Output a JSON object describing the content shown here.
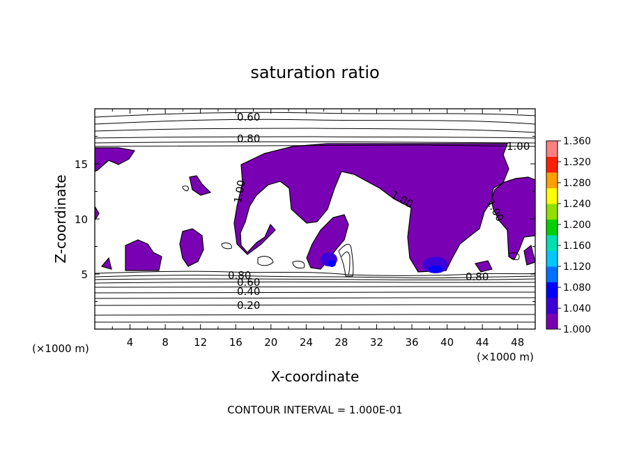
{
  "chart_data": {
    "type": "heatmap",
    "title": "saturation ratio",
    "xlabel": "X-coordinate",
    "ylabel": "Z-coordinate",
    "x_units": "(×1000 m)",
    "y_units": "(×1000 m)",
    "xlim": [
      0,
      50
    ],
    "ylim": [
      0,
      20
    ],
    "x_ticks": [
      "4",
      "8",
      "12",
      "16",
      "20",
      "24",
      "28",
      "32",
      "36",
      "40",
      "44",
      "48"
    ],
    "y_ticks": [
      "5",
      "10",
      "15"
    ],
    "contour_interval_text": "CONTOUR INTERVAL = 1.000E-01",
    "contour_labels": [
      {
        "text": "0.60",
        "x": 17.5,
        "z": 18.9
      },
      {
        "text": "0.80",
        "x": 17.5,
        "z": 17.4
      },
      {
        "text": "1.00",
        "x": 47.5,
        "z": 16.5
      },
      {
        "text": "1.00",
        "x": 16.3,
        "z": 12.0
      },
      {
        "text": "1.00",
        "x": 34.2,
        "z": 11.3
      },
      {
        "text": "1.00",
        "x": 44.8,
        "z": 10.8
      },
      {
        "text": "0.80",
        "x": 16.5,
        "z": 4.9
      },
      {
        "text": "0.60",
        "x": 17.5,
        "z": 4.3
      },
      {
        "text": "0.40",
        "x": 17.5,
        "z": 3.5
      },
      {
        "text": "0.20",
        "x": 17.5,
        "z": 2.1
      },
      {
        "text": "0.80",
        "x": 43.3,
        "z": 4.7
      }
    ],
    "colorbar": {
      "min": 1.0,
      "max": 1.36,
      "ticks": [
        "1.360",
        "1.320",
        "1.280",
        "1.240",
        "1.200",
        "1.160",
        "1.120",
        "1.080",
        "1.040",
        "1.000"
      ],
      "colors": [
        "#7a00b4",
        "#3c00d8",
        "#0000ff",
        "#0070ff",
        "#00c8ff",
        "#00e0b0",
        "#00d000",
        "#90e000",
        "#ffff00",
        "#ffa000",
        "#ff2000",
        "#ff8080"
      ]
    }
  }
}
